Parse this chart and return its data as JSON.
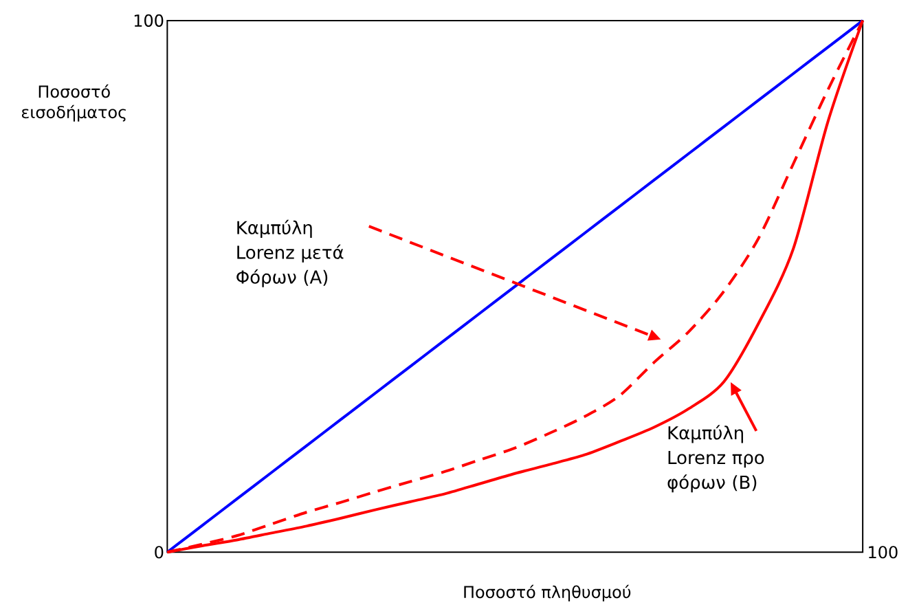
{
  "chart_data": {
    "type": "line",
    "xlabel": "Ποσοστό πληθυσμού",
    "ylabel": "Ποσοστό εισοδήματος",
    "categories": [
      null,
      null,
      null,
      null,
      null,
      null,
      null,
      null,
      null,
      null,
      null,
      null,
      null,
      null,
      null,
      null,
      null,
      null,
      null,
      null,
      null
    ],
    "ylim": [
      0,
      100
    ],
    "yticks": [
      0,
      100
    ],
    "series": [
      {
        "color": "#0000ff",
        "line_style": "solid",
        "values": [
          0,
          5,
          10,
          15,
          20,
          25,
          30,
          35,
          40,
          45,
          50,
          55,
          60,
          65,
          70,
          75,
          80,
          85,
          90,
          95,
          100
        ]
      },
      {
        "color": "#ff0000",
        "line_style": "dashed",
        "values": [
          0,
          1.5,
          3.1,
          5.3,
          7.5,
          9.4,
          11.4,
          13.3,
          15.2,
          17.4,
          19.6,
          22.4,
          25.5,
          29.4,
          35.7,
          41.5,
          49,
          59,
          73,
          87,
          100
        ]
      },
      {
        "color": "#ff0000",
        "line_style": "solid",
        "values": [
          0,
          1.2,
          2.3,
          3.6,
          4.9,
          6.4,
          8,
          9.5,
          11,
          12.9,
          14.8,
          16.5,
          18.3,
          20.8,
          23.5,
          27,
          32,
          43,
          57,
          81,
          100
        ]
      }
    ],
    "annotations": [
      "Καμπύλη Lorenz μετά Φόρων (A)",
      "Καμπύλη Lorenz προ φόρων (B)",
      "100"
    ]
  }
}
